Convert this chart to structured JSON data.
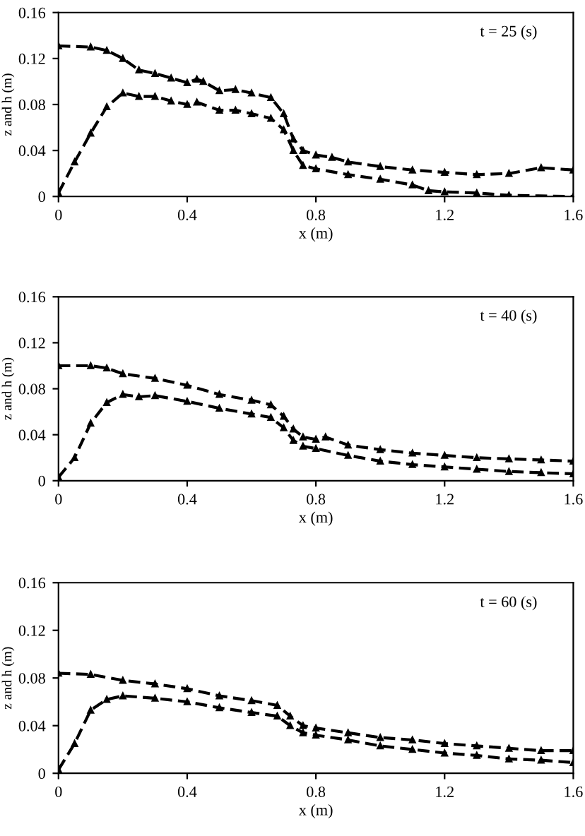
{
  "chart_data": [
    {
      "type": "line",
      "xlabel": "x (m)",
      "ylabel": "z and h (m)",
      "annotations": [
        "t = 25 (s)"
      ],
      "xlim": [
        0,
        1.6
      ],
      "ylim": [
        0,
        0.16
      ],
      "xticks": [
        0,
        0.4,
        0.8,
        1.2,
        1.6
      ],
      "yticks": [
        0,
        0.04,
        0.08,
        0.12,
        0.16
      ],
      "grid": false,
      "marker": "triangle",
      "line_style": "dashed",
      "series": [
        {
          "color": "#000000",
          "x": [
            0,
            0.1,
            0.15,
            0.2,
            0.25,
            0.3,
            0.35,
            0.4,
            0.43,
            0.45,
            0.5,
            0.55,
            0.6,
            0.66,
            0.7,
            0.73,
            0.76,
            0.8,
            0.85,
            0.9,
            1.0,
            1.1,
            1.2,
            1.3,
            1.4,
            1.5,
            1.6
          ],
          "values": [
            0.131,
            0.13,
            0.127,
            0.12,
            0.11,
            0.107,
            0.103,
            0.099,
            0.102,
            0.1,
            0.092,
            0.093,
            0.09,
            0.086,
            0.072,
            0.05,
            0.04,
            0.036,
            0.034,
            0.03,
            0.026,
            0.023,
            0.021,
            0.019,
            0.02,
            0.025,
            0.023
          ]
        },
        {
          "color": "#000000",
          "x": [
            0,
            0.05,
            0.1,
            0.15,
            0.2,
            0.25,
            0.3,
            0.35,
            0.4,
            0.43,
            0.5,
            0.55,
            0.6,
            0.66,
            0.7,
            0.73,
            0.76,
            0.8,
            0.9,
            1.0,
            1.1,
            1.15,
            1.2,
            1.3,
            1.4,
            1.6
          ],
          "values": [
            0.003,
            0.03,
            0.055,
            0.078,
            0.09,
            0.087,
            0.087,
            0.083,
            0.08,
            0.082,
            0.075,
            0.075,
            0.072,
            0.068,
            0.058,
            0.04,
            0.027,
            0.024,
            0.019,
            0.015,
            0.01,
            0.005,
            0.004,
            0.003,
            0.001,
            0.0
          ]
        }
      ]
    },
    {
      "type": "line",
      "xlabel": "x (m)",
      "ylabel": "z and h (m)",
      "annotations": [
        "t = 40 (s)"
      ],
      "xlim": [
        0,
        1.6
      ],
      "ylim": [
        0,
        0.16
      ],
      "xticks": [
        0,
        0.4,
        0.8,
        1.2,
        1.6
      ],
      "yticks": [
        0,
        0.04,
        0.08,
        0.12,
        0.16
      ],
      "grid": false,
      "marker": "triangle",
      "line_style": "dashed",
      "series": [
        {
          "color": "#000000",
          "x": [
            0,
            0.1,
            0.15,
            0.2,
            0.3,
            0.4,
            0.5,
            0.6,
            0.66,
            0.7,
            0.73,
            0.76,
            0.8,
            0.83,
            0.9,
            1.0,
            1.1,
            1.2,
            1.3,
            1.4,
            1.5,
            1.6
          ],
          "values": [
            0.1,
            0.1,
            0.098,
            0.093,
            0.089,
            0.083,
            0.075,
            0.07,
            0.066,
            0.056,
            0.045,
            0.038,
            0.036,
            0.038,
            0.031,
            0.027,
            0.024,
            0.022,
            0.02,
            0.019,
            0.018,
            0.017
          ]
        },
        {
          "color": "#000000",
          "x": [
            0,
            0.05,
            0.1,
            0.15,
            0.2,
            0.25,
            0.3,
            0.4,
            0.5,
            0.6,
            0.66,
            0.7,
            0.73,
            0.76,
            0.8,
            0.9,
            1.0,
            1.1,
            1.2,
            1.3,
            1.4,
            1.5,
            1.6
          ],
          "values": [
            0.003,
            0.02,
            0.05,
            0.068,
            0.075,
            0.073,
            0.074,
            0.069,
            0.063,
            0.058,
            0.055,
            0.046,
            0.035,
            0.03,
            0.028,
            0.022,
            0.017,
            0.014,
            0.012,
            0.01,
            0.008,
            0.007,
            0.006
          ]
        }
      ]
    },
    {
      "type": "line",
      "xlabel": "x (m)",
      "ylabel": "z and h (m)",
      "annotations": [
        "t = 60 (s)"
      ],
      "xlim": [
        0,
        1.6
      ],
      "ylim": [
        0,
        0.16
      ],
      "xticks": [
        0,
        0.4,
        0.8,
        1.2,
        1.6
      ],
      "yticks": [
        0,
        0.04,
        0.08,
        0.12,
        0.16
      ],
      "grid": false,
      "marker": "triangle",
      "line_style": "dashed",
      "series": [
        {
          "color": "#000000",
          "x": [
            0,
            0.1,
            0.2,
            0.3,
            0.4,
            0.5,
            0.6,
            0.68,
            0.72,
            0.76,
            0.8,
            0.9,
            1.0,
            1.1,
            1.2,
            1.3,
            1.4,
            1.5,
            1.6
          ],
          "values": [
            0.084,
            0.083,
            0.078,
            0.075,
            0.071,
            0.065,
            0.061,
            0.057,
            0.048,
            0.04,
            0.038,
            0.034,
            0.03,
            0.028,
            0.025,
            0.023,
            0.021,
            0.019,
            0.019
          ]
        },
        {
          "color": "#000000",
          "x": [
            0,
            0.05,
            0.1,
            0.15,
            0.2,
            0.3,
            0.4,
            0.5,
            0.6,
            0.68,
            0.72,
            0.76,
            0.8,
            0.9,
            1.0,
            1.1,
            1.2,
            1.3,
            1.4,
            1.5,
            1.6
          ],
          "values": [
            0.003,
            0.025,
            0.053,
            0.062,
            0.065,
            0.063,
            0.06,
            0.055,
            0.051,
            0.048,
            0.04,
            0.034,
            0.032,
            0.028,
            0.023,
            0.02,
            0.017,
            0.015,
            0.012,
            0.011,
            0.009
          ]
        }
      ]
    }
  ]
}
